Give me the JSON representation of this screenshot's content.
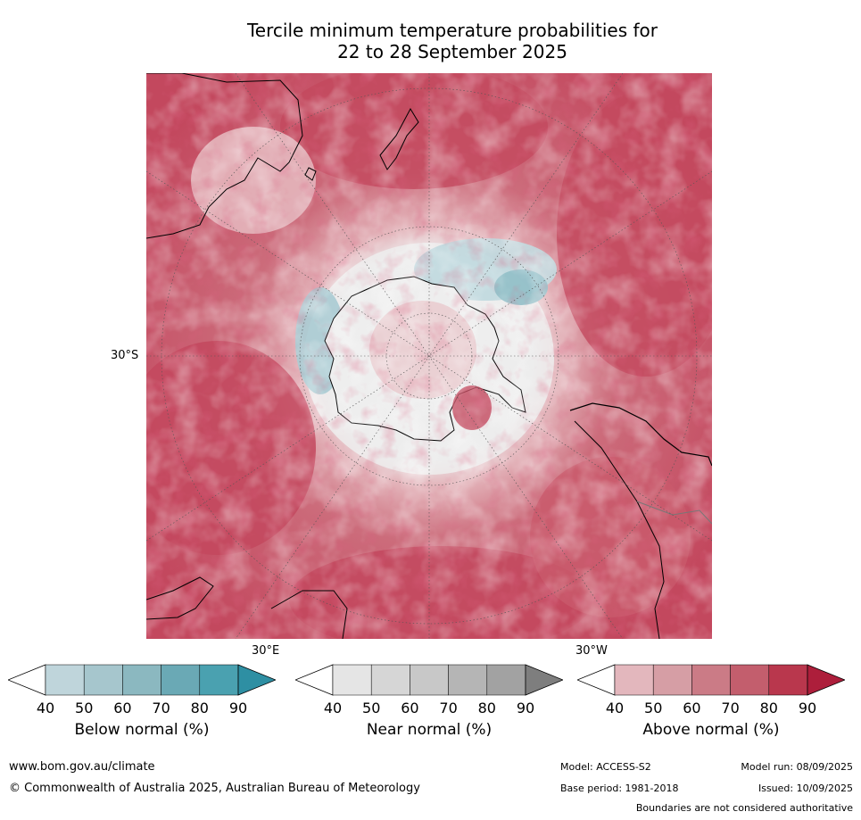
{
  "title": {
    "line1": "Tercile minimum temperature probabilities for",
    "line2": "22 to 28 September 2025"
  },
  "map": {
    "projection": "south-polar-stereographic",
    "labels": {
      "lat30s": "30°S",
      "lon30e": "30°E",
      "lon30w": "30°W"
    },
    "colors": {
      "ocean_above_high": "#c3485e",
      "ocean_above_mid": "#d57f8b",
      "ocean_above_low": "#e4b6bc",
      "near": "#e6e6e6",
      "below_low": "#bfd8de",
      "below_mid": "#92bfc8",
      "land_line": "#000000"
    }
  },
  "colorbars": [
    {
      "name": "Below normal (%)",
      "ticks": [
        "40",
        "50",
        "60",
        "70",
        "80",
        "90"
      ],
      "colors": [
        "#ffffff",
        "#bfd5db",
        "#a6c6cd",
        "#8bb8c0",
        "#6aa9b5",
        "#4aa1b0",
        "#2e8fa3"
      ]
    },
    {
      "name": "Near normal (%)",
      "ticks": [
        "40",
        "50",
        "60",
        "70",
        "80",
        "90"
      ],
      "colors": [
        "#ffffff",
        "#e5e5e5",
        "#d6d6d6",
        "#c8c8c8",
        "#b5b5b5",
        "#a2a2a2",
        "#7e7e7e"
      ]
    },
    {
      "name": "Above normal (%)",
      "ticks": [
        "40",
        "50",
        "60",
        "70",
        "80",
        "90"
      ],
      "colors": [
        "#ffffff",
        "#e3b7bd",
        "#d69ea5",
        "#cb7b86",
        "#c35e6d",
        "#b9374d",
        "#ad1e3b"
      ]
    }
  ],
  "footer": {
    "url": "www.bom.gov.au/climate",
    "copyright": "© Commonwealth of Australia 2025, Australian Bureau of Meteorology",
    "model": "Model: ACCESS-S2",
    "base": "Base period: 1981-2018",
    "run": "Model run: 08/09/2025",
    "issued": "Issued: 10/09/2025",
    "disclaimer": "Boundaries are not considered authoritative"
  }
}
